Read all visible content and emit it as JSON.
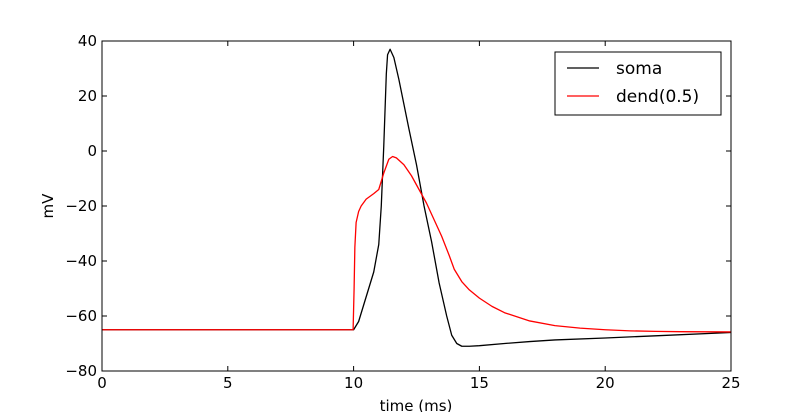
{
  "chart_data": {
    "type": "line",
    "title": "",
    "xlabel": "time (ms)",
    "ylabel": "mV",
    "xlim": [
      0,
      25
    ],
    "ylim": [
      -80,
      40
    ],
    "xticks": [
      0,
      5,
      10,
      15,
      20,
      25
    ],
    "yticks": [
      -80,
      -60,
      -40,
      -20,
      0,
      20,
      40
    ],
    "grid": false,
    "legend_position": "top-right",
    "series": [
      {
        "name": "soma",
        "color": "#000000",
        "x": [
          0,
          9.95,
          10.0,
          10.2,
          10.4,
          10.6,
          10.8,
          11.0,
          11.1,
          11.2,
          11.3,
          11.35,
          11.45,
          11.6,
          11.8,
          12.0,
          12.2,
          12.5,
          12.8,
          13.1,
          13.4,
          13.7,
          13.9,
          14.1,
          14.3,
          14.6,
          15.0,
          16.0,
          17.0,
          18.0,
          20.0,
          22.0,
          25.0
        ],
        "y": [
          -65,
          -65,
          -65,
          -62,
          -56,
          -50,
          -44,
          -34,
          -20,
          2,
          28,
          35,
          37,
          34,
          26,
          17,
          8,
          -5,
          -20,
          -33,
          -48,
          -60,
          -67,
          -70,
          -71,
          -71,
          -70.8,
          -70,
          -69.3,
          -68.7,
          -68,
          -67.2,
          -66
        ]
      },
      {
        "name": "dend(0.5)",
        "color": "#ff0000",
        "x": [
          0,
          9.98,
          10.02,
          10.05,
          10.1,
          10.2,
          10.3,
          10.5,
          10.8,
          11.0,
          11.2,
          11.4,
          11.55,
          11.7,
          12.0,
          12.3,
          12.6,
          12.9,
          13.2,
          13.5,
          13.8,
          14.0,
          14.3,
          14.6,
          15.0,
          15.5,
          16.0,
          17.0,
          18.0,
          19.0,
          20.0,
          21.0,
          22.0,
          23.0,
          25.0
        ],
        "y": [
          -65,
          -65,
          -50,
          -35,
          -26,
          -22,
          -20,
          -17.5,
          -15.5,
          -14,
          -8,
          -3,
          -2,
          -2.5,
          -5,
          -9,
          -14,
          -19,
          -25,
          -31,
          -38,
          -43,
          -47.5,
          -50.5,
          -53.5,
          -56.5,
          -58.8,
          -61.8,
          -63.5,
          -64.4,
          -65,
          -65.4,
          -65.6,
          -65.7,
          -65.8
        ]
      }
    ]
  }
}
